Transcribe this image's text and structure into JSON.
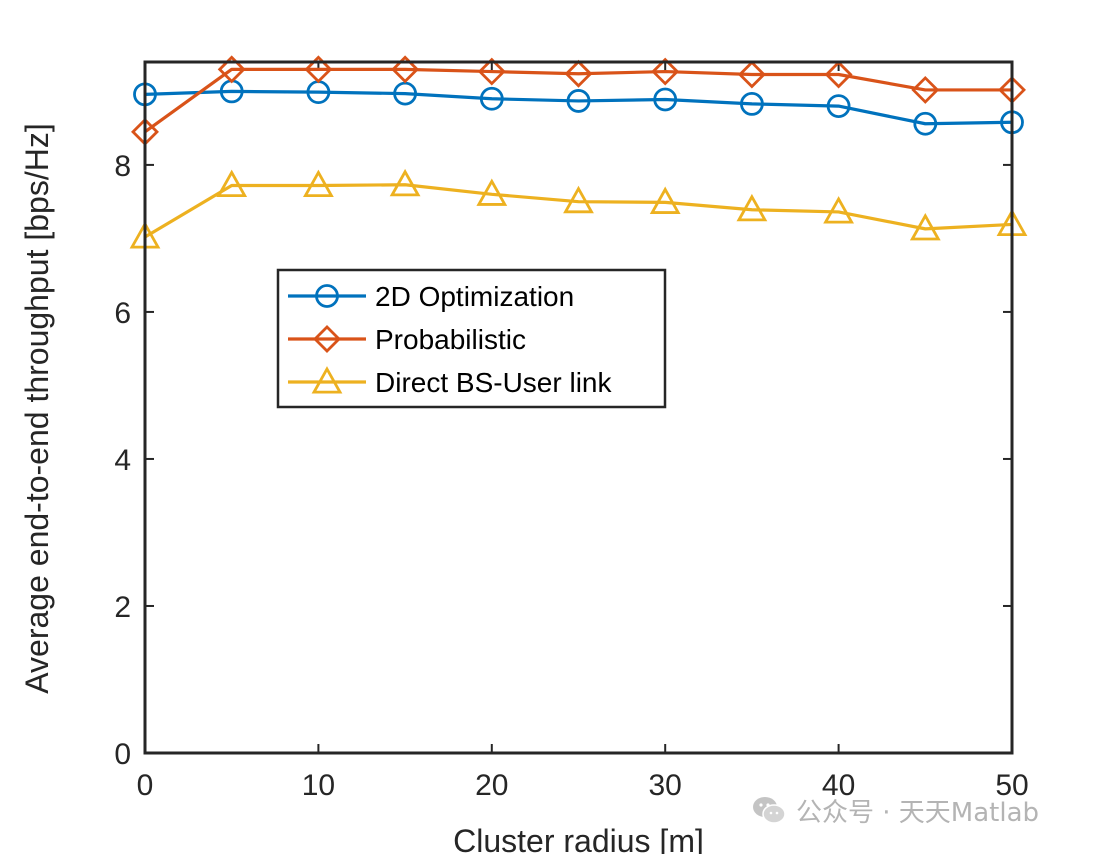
{
  "chart_data": {
    "type": "line",
    "title": "",
    "xlabel": "Cluster radius [m]",
    "ylabel": "Average end-to-end throughput [bps/Hz]",
    "xlim": [
      0,
      50
    ],
    "ylim": [
      0,
      9.4
    ],
    "xticks": [
      0,
      10,
      20,
      30,
      40,
      50
    ],
    "yticks": [
      0,
      2,
      4,
      6,
      8
    ],
    "grid": false,
    "legend_position": "middle-left",
    "x": [
      0,
      5,
      10,
      15,
      20,
      25,
      30,
      35,
      40,
      45,
      50
    ],
    "series": [
      {
        "name": "2D Optimization",
        "marker": "circle",
        "color": "#0072BD",
        "values": [
          8.96,
          9.0,
          8.99,
          8.97,
          8.9,
          8.87,
          8.89,
          8.83,
          8.8,
          8.56,
          8.58
        ]
      },
      {
        "name": "Probabilistic",
        "marker": "diamond",
        "color": "#D95319",
        "values": [
          8.45,
          9.3,
          9.3,
          9.3,
          9.27,
          9.24,
          9.27,
          9.23,
          9.23,
          9.02,
          9.02
        ]
      },
      {
        "name": "Direct BS-User link",
        "marker": "triangle",
        "color": "#EDB120",
        "values": [
          7.02,
          7.72,
          7.72,
          7.73,
          7.6,
          7.5,
          7.49,
          7.39,
          7.36,
          7.13,
          7.19
        ]
      }
    ]
  },
  "watermark": {
    "icon": "wechat-icon",
    "text": "公众号 · 天天Matlab"
  }
}
